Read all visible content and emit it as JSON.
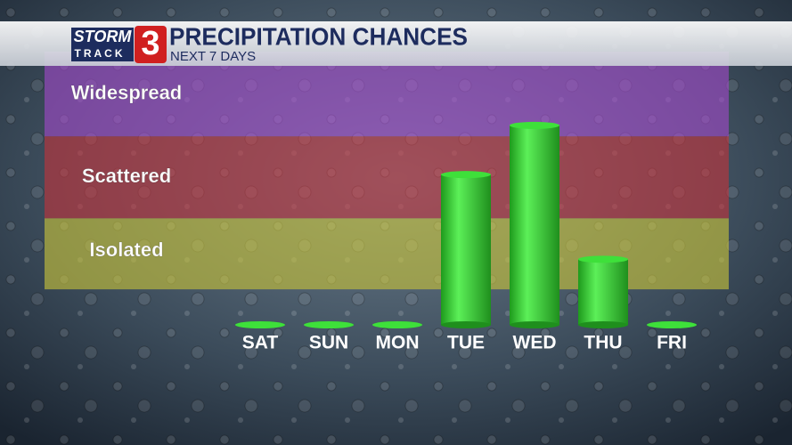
{
  "chart_data": {
    "type": "bar",
    "title": "PRECIPITATION CHANCES",
    "subtitle": "NEXT 7 DAYS",
    "logo": {
      "top": "STORM",
      "bottom": "TRACK",
      "number": "3"
    },
    "categories": [
      "SAT",
      "SUN",
      "MON",
      "TUE",
      "WED",
      "THU",
      "FRI"
    ],
    "values": [
      0,
      0,
      0,
      55,
      73,
      24,
      0
    ],
    "color": "#3ee03a",
    "ylim": [
      0,
      100
    ],
    "bands": [
      {
        "name": "Isolated",
        "range": [
          13,
          39
        ],
        "color": "#c8c43a"
      },
      {
        "name": "Scattered",
        "range": [
          39,
          69
        ],
        "color": "#c0343c"
      },
      {
        "name": "Widespread",
        "range": [
          69,
          100
        ],
        "color": "#a048c8"
      }
    ]
  }
}
